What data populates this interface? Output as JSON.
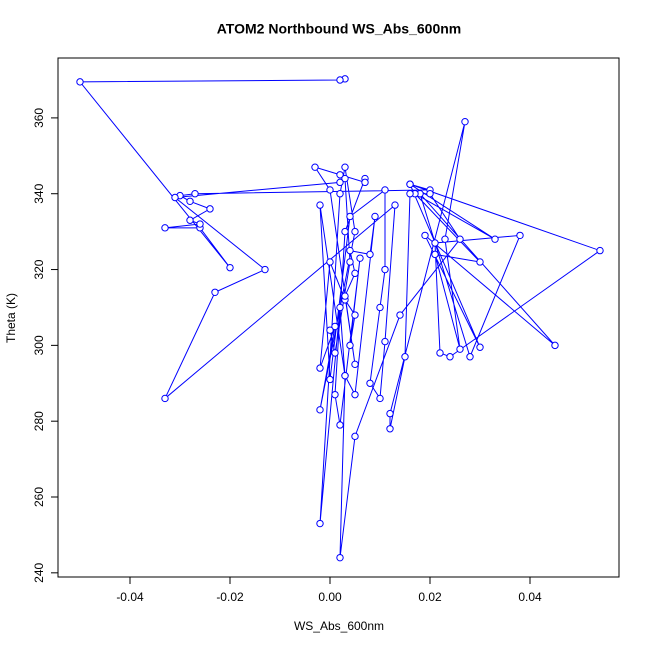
{
  "chart_data": {
    "type": "line",
    "title": "ATOM2 Northbound WS_Abs_600nm",
    "x_label": "WS_Abs_600nm",
    "y_label": "Theta (K)",
    "color": "#0000ff",
    "x": [
      0.003,
      0.002,
      -0.05,
      -0.02,
      -0.026,
      -0.033,
      -0.026,
      -0.028,
      -0.024,
      -0.028,
      -0.03,
      -0.027,
      0.02,
      0.016,
      0.054,
      0.024,
      0.022,
      0.021,
      0.038,
      0.028,
      0.018,
      0.045,
      0.019,
      0.03,
      0.016,
      0.033,
      0.017,
      0.03,
      0.021,
      0.026,
      0.023,
      0.027,
      0.012,
      0.012,
      0.015,
      0.016,
      0.02,
      0.026,
      0.014,
      0.005,
      0.002,
      0.003,
      0.002,
      -0.002,
      0.002,
      0.003,
      0.005,
      -0.002,
      0.001,
      -0.002,
      0.0,
      0.003,
      0.005,
      0.004,
      0.006,
      0.002,
      0.001,
      0.003,
      0.007,
      0.007,
      0.002,
      -0.003,
      0.0,
      0.005,
      0.003,
      0.005,
      0.004,
      0.008,
      0.009,
      0.005,
      0.003,
      -0.002,
      0.0,
      0.004,
      0.011,
      0.011,
      0.01,
      0.008,
      0.01,
      0.011,
      0.013,
      -0.033,
      -0.023,
      -0.013,
      -0.031,
      0.002,
      0.003,
      0.004,
      0.001,
      0.0
    ],
    "values": [
      370.3,
      370,
      369.5,
      320.5,
      331,
      331,
      332,
      333,
      336,
      338,
      339.5,
      340,
      341,
      342.5,
      325,
      297,
      298,
      327,
      329,
      297,
      340,
      300,
      329,
      299.5,
      342.5,
      328,
      340,
      322,
      324,
      299,
      328,
      359,
      282,
      278,
      297,
      340,
      340,
      328,
      308,
      276,
      244,
      292,
      310,
      253,
      340,
      347,
      330,
      283,
      305,
      294,
      322,
      312,
      308,
      300,
      323,
      279,
      287,
      330,
      344,
      343,
      345,
      347,
      341,
      295,
      313,
      319,
      325,
      324,
      334,
      287,
      292,
      337,
      291,
      334,
      341,
      320,
      310,
      290,
      286,
      301,
      337,
      286,
      314,
      320,
      339,
      343,
      344,
      322,
      298,
      304
    ],
    "xlim": [
      -0.0544,
      0.0578
    ],
    "ylim": [
      238.9,
      375.8
    ],
    "xticks": [
      -0.04,
      -0.02,
      {
        "value": 0,
        "label": "0.00"
      },
      0.02,
      0.04
    ],
    "yticks": [
      240,
      260,
      280,
      300,
      320,
      340,
      360
    ]
  }
}
